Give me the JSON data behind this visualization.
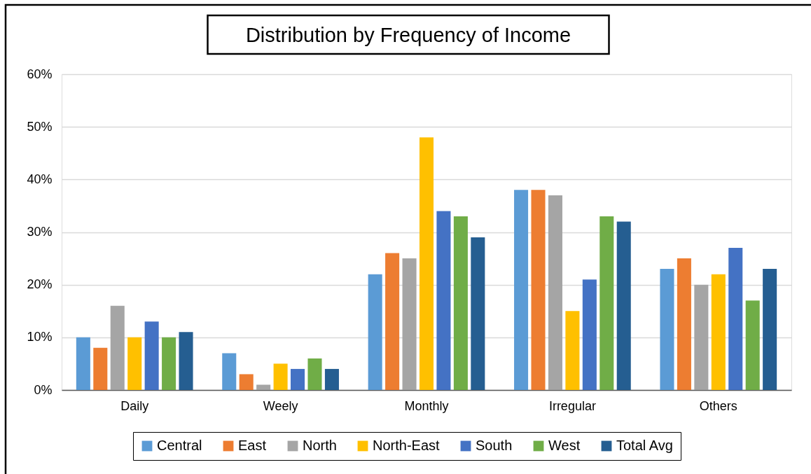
{
  "chart_data": {
    "type": "bar",
    "title": "Distribution by Frequency of Income",
    "categories": [
      "Daily",
      "Weely",
      "Monthly",
      "Irregular",
      "Others"
    ],
    "series": [
      {
        "name": "Central",
        "color": "#5b9bd5",
        "values": [
          10,
          7,
          22,
          38,
          23
        ]
      },
      {
        "name": "East",
        "color": "#ed7d31",
        "values": [
          8,
          3,
          26,
          38,
          25
        ]
      },
      {
        "name": "North",
        "color": "#a5a5a5",
        "values": [
          16,
          1,
          25,
          37,
          20
        ]
      },
      {
        "name": "North-East",
        "color": "#ffc000",
        "values": [
          10,
          5,
          48,
          15,
          22
        ]
      },
      {
        "name": "South",
        "color": "#4472c4",
        "values": [
          13,
          4,
          34,
          21,
          27
        ]
      },
      {
        "name": "West",
        "color": "#70ad47",
        "values": [
          10,
          6,
          33,
          33,
          17
        ]
      },
      {
        "name": "Total Avg",
        "color": "#255e91",
        "values": [
          11,
          4,
          29,
          32,
          23
        ]
      }
    ],
    "ylim": [
      0,
      60
    ],
    "yticks": [
      {
        "value": 0,
        "label": "0%"
      },
      {
        "value": 10,
        "label": "10%"
      },
      {
        "value": 20,
        "label": "20%"
      },
      {
        "value": 30,
        "label": "30%"
      },
      {
        "value": 40,
        "label": "40%"
      },
      {
        "value": 50,
        "label": "50%"
      },
      {
        "value": 60,
        "label": "60%"
      }
    ],
    "grid": "y",
    "legend": "bottom"
  }
}
